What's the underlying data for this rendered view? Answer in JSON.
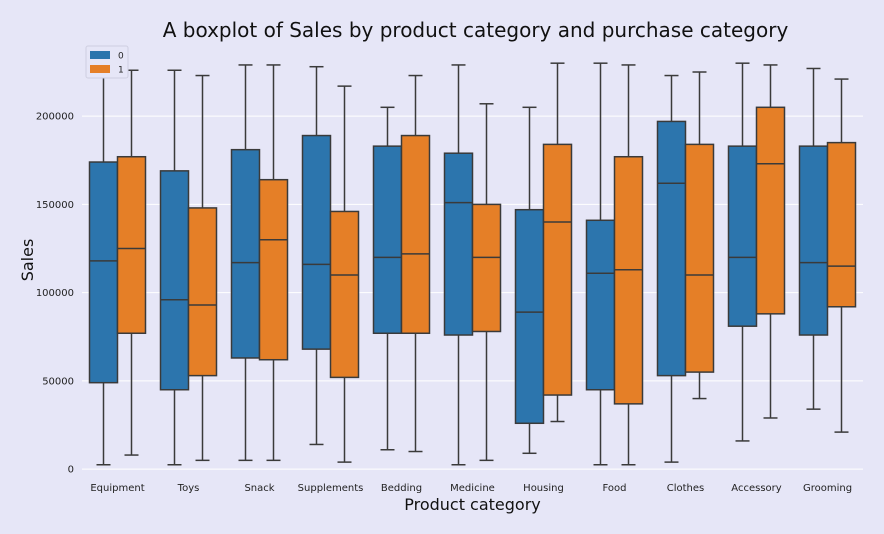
{
  "chart_data": {
    "type": "boxplot",
    "title": "A boxplot of Sales by product category and purchase category",
    "xlabel": "Product category",
    "ylabel": "Sales",
    "ylim": [
      -5000,
      242000
    ],
    "yticks": [
      0,
      50000,
      100000,
      150000,
      200000
    ],
    "grid": true,
    "legend_position": "top-left",
    "categories": [
      "Equipment",
      "Toys",
      "Snack",
      "Supplements",
      "Bedding",
      "Medicine",
      "Housing",
      "Food",
      "Clothes",
      "Accessory",
      "Grooming"
    ],
    "series": [
      {
        "name": "0",
        "color": "#2c75ad",
        "boxes": [
          {
            "min": 2500,
            "q1": 49000,
            "median": 118000,
            "q3": 174000,
            "max": 226000
          },
          {
            "min": 2500,
            "q1": 45000,
            "median": 96000,
            "q3": 169000,
            "max": 226000
          },
          {
            "min": 5000,
            "q1": 63000,
            "median": 117000,
            "q3": 181000,
            "max": 229000
          },
          {
            "min": 14000,
            "q1": 68000,
            "median": 116000,
            "q3": 189000,
            "max": 228000
          },
          {
            "min": 11000,
            "q1": 77000,
            "median": 120000,
            "q3": 183000,
            "max": 205000
          },
          {
            "min": 2500,
            "q1": 76000,
            "median": 151000,
            "q3": 179000,
            "max": 229000
          },
          {
            "min": 9000,
            "q1": 26000,
            "median": 89000,
            "q3": 147000,
            "max": 205000
          },
          {
            "min": 2500,
            "q1": 45000,
            "median": 111000,
            "q3": 141000,
            "max": 230000
          },
          {
            "min": 4000,
            "q1": 53000,
            "median": 162000,
            "q3": 197000,
            "max": 223000
          },
          {
            "min": 16000,
            "q1": 81000,
            "median": 120000,
            "q3": 183000,
            "max": 230000
          },
          {
            "min": 34000,
            "q1": 76000,
            "median": 117000,
            "q3": 183000,
            "max": 227000
          }
        ]
      },
      {
        "name": "1",
        "color": "#e57f27",
        "boxes": [
          {
            "min": 8000,
            "q1": 77000,
            "median": 125000,
            "q3": 177000,
            "max": 226000
          },
          {
            "min": 5000,
            "q1": 53000,
            "median": 93000,
            "q3": 148000,
            "max": 223000
          },
          {
            "min": 5000,
            "q1": 62000,
            "median": 130000,
            "q3": 164000,
            "max": 229000
          },
          {
            "min": 4000,
            "q1": 52000,
            "median": 110000,
            "q3": 146000,
            "max": 217000
          },
          {
            "min": 10000,
            "q1": 77000,
            "median": 122000,
            "q3": 189000,
            "max": 223000
          },
          {
            "min": 5000,
            "q1": 78000,
            "median": 120000,
            "q3": 150000,
            "max": 207000
          },
          {
            "min": 27000,
            "q1": 42000,
            "median": 140000,
            "q3": 184000,
            "max": 230000
          },
          {
            "min": 2500,
            "q1": 37000,
            "median": 113000,
            "q3": 177000,
            "max": 229000
          },
          {
            "min": 40000,
            "q1": 55000,
            "median": 110000,
            "q3": 184000,
            "max": 225000
          },
          {
            "min": 29000,
            "q1": 88000,
            "median": 173000,
            "q3": 205000,
            "max": 229000
          },
          {
            "min": 21000,
            "q1": 92000,
            "median": 115000,
            "q3": 185000,
            "max": 221000
          }
        ]
      }
    ]
  }
}
